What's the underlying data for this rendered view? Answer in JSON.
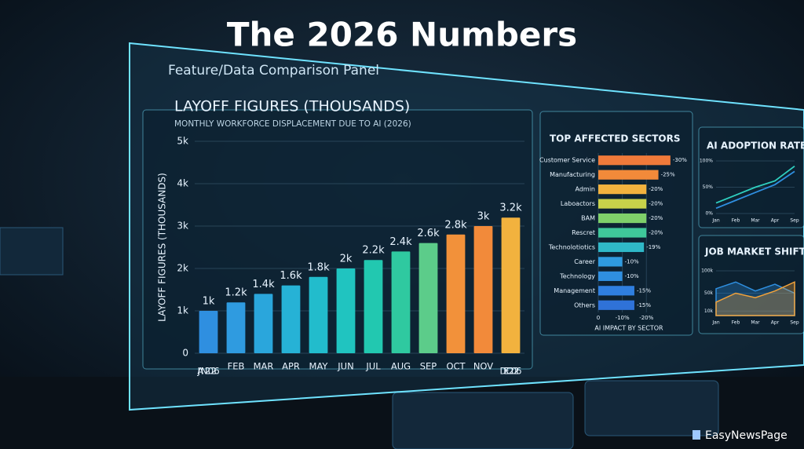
{
  "page": {
    "title": "The 2026 Numbers",
    "panel_title": "Feature/Data Comparison Panel",
    "brand": "EasyNewsPage"
  },
  "chart_data": [
    {
      "type": "bar",
      "title": "LAYOFF FIGURES (THOUSANDS)",
      "subtitle": "MONTHLY WORKFORCE DISPLACEMENT DUE TO AI (2026)",
      "y_label": "LAYOFF FIGURES (THOUSANDS)",
      "categories": [
        "JAN 2026",
        "FEB",
        "MAR",
        "APR",
        "MAY",
        "JUN",
        "JUL",
        "AUG",
        "SEP",
        "OCT",
        "NOV",
        "DEC 2026"
      ],
      "values": [
        1,
        1.2,
        1.4,
        1.6,
        1.8,
        2,
        2.2,
        2.4,
        2.6,
        2.8,
        3,
        3.2
      ],
      "value_labels": [
        "1k",
        "1.2k",
        "1.4k",
        "1.6k",
        "1.8k",
        "2k",
        "2.2k",
        "2.4k",
        "2.6k",
        "2.8k",
        "3k",
        "3.2k"
      ],
      "colors": [
        "#2f8fe0",
        "#2f9be0",
        "#2aa6dc",
        "#26b2d6",
        "#22bccc",
        "#20c4c0",
        "#22c8b0",
        "#2fc9a0",
        "#5ccc8a",
        "#f2913a",
        "#f28a3a",
        "#f2b23e"
      ],
      "ylim": [
        0,
        5
      ],
      "yticks": [
        0,
        {
          "value": 1,
          "label": "1k"
        },
        {
          "value": 2,
          "label": "2k"
        },
        {
          "value": 3,
          "label": "3k"
        },
        {
          "value": 4,
          "label": "4k"
        },
        {
          "value": 5,
          "label": "5k"
        }
      ],
      "grid": true
    },
    {
      "type": "hbar",
      "title": "TOP AFFECTED SECTORS",
      "x_label": "AI IMPACT BY SECTOR",
      "categories": [
        "Customer Service",
        "Manufacturing",
        "Admin",
        "Laboactors",
        "BAM",
        "Rescret",
        "Technolotiotics",
        "Career",
        "Technology",
        "Management",
        "Others"
      ],
      "values": [
        -30,
        -25,
        -20,
        -20,
        -20,
        -20,
        -19,
        -10,
        -10,
        -15,
        -15
      ],
      "value_labels": [
        "-30%",
        "-25%",
        "-20%",
        "-20%",
        "-20%",
        "-20%",
        "-19%",
        "-10%",
        "-10%",
        "-15%",
        "-15%"
      ],
      "colors": [
        "#f07a3a",
        "#f28a3a",
        "#f2b23e",
        "#c8d24a",
        "#7fd06a",
        "#3fc79a",
        "#2fb8c8",
        "#2f9be0",
        "#2f8fe0",
        "#2f7fe0",
        "#2f72d8"
      ],
      "xlim": [
        0,
        -32
      ],
      "xticks": [
        0,
        {
          "value": -10,
          "label": "-10%"
        },
        {
          "value": -20,
          "label": "-20%"
        }
      ]
    },
    {
      "type": "line",
      "title": "AI ADOPTION RATE",
      "categories": [
        "Jan",
        "Feb",
        "Mar",
        "Apr",
        "Sep"
      ],
      "series": [
        {
          "color": "#2fd0c0",
          "values": [
            20,
            35,
            50,
            62,
            90
          ]
        },
        {
          "color": "#2f8fe0",
          "values": [
            10,
            25,
            40,
            55,
            80
          ]
        }
      ],
      "ylim": [
        0,
        100
      ],
      "yticks": [
        {
          "value": 0,
          "label": "0%"
        },
        {
          "value": 50,
          "label": "50%"
        },
        {
          "value": 100,
          "label": "100%"
        }
      ]
    },
    {
      "type": "area",
      "title": "JOB MARKET SHIFTS",
      "categories": [
        "Jan",
        "Feb",
        "Mar",
        "Apr",
        "Sep"
      ],
      "series": [
        {
          "color": "#2f8fe0",
          "values": [
            60,
            75,
            55,
            70,
            50
          ]
        },
        {
          "color": "#f2a23a",
          "values": [
            30,
            50,
            40,
            55,
            75
          ]
        }
      ],
      "ylim": [
        0,
        100
      ],
      "yticks": [
        {
          "value": 10,
          "label": "10k"
        },
        {
          "value": 50,
          "label": "50k"
        },
        {
          "value": 100,
          "label": "100k"
        }
      ]
    }
  ]
}
